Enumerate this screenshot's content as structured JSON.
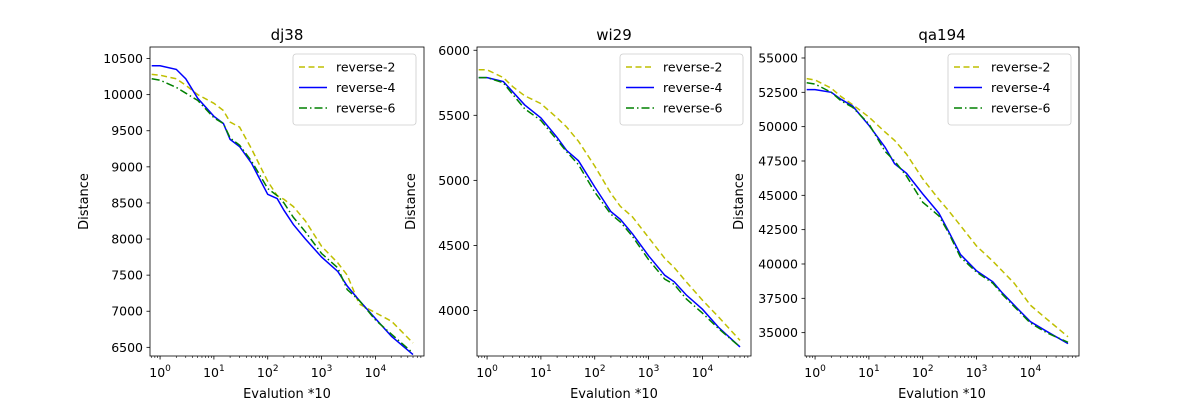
{
  "chart_data": [
    {
      "type": "line",
      "title": "dj38",
      "xlabel": "Evalution *10",
      "ylabel": "Distance",
      "xscale": "log",
      "xlim": [
        0.65,
        80000
      ],
      "ylim": [
        6380,
        10660
      ],
      "xticks": [
        {
          "value": 1,
          "base": "10",
          "exp": "0"
        },
        {
          "value": 10,
          "base": "10",
          "exp": "1"
        },
        {
          "value": 100,
          "base": "10",
          "exp": "2"
        },
        {
          "value": 1000,
          "base": "10",
          "exp": "3"
        },
        {
          "value": 10000,
          "base": "10",
          "exp": "4"
        }
      ],
      "yticks": [
        6500,
        7000,
        7500,
        8000,
        8500,
        9000,
        9500,
        10000,
        10500
      ],
      "legend": "top-right",
      "series": [
        {
          "name": "reverse-2",
          "color": "#bfbf00",
          "dash": "dashed",
          "x": [
            0.7,
            1,
            2,
            3,
            5,
            10,
            15,
            20,
            30,
            50,
            100,
            150,
            200,
            300,
            500,
            1000,
            2000,
            3000,
            5000,
            10000,
            20000,
            50000
          ],
          "y": [
            10280,
            10270,
            10220,
            10130,
            10000,
            9880,
            9780,
            9620,
            9550,
            9250,
            8800,
            8600,
            8550,
            8450,
            8250,
            7900,
            7670,
            7500,
            7100,
            6980,
            6860,
            6560
          ]
        },
        {
          "name": "reverse-4",
          "color": "#0000ff",
          "dash": "solid",
          "x": [
            0.7,
            1,
            2,
            3,
            5,
            10,
            15,
            20,
            30,
            50,
            100,
            150,
            200,
            300,
            500,
            1000,
            2000,
            3000,
            5000,
            10000,
            20000,
            50000
          ],
          "y": [
            10400,
            10400,
            10350,
            10220,
            9950,
            9700,
            9600,
            9380,
            9280,
            9050,
            8620,
            8560,
            8400,
            8200,
            8000,
            7750,
            7550,
            7350,
            7150,
            6900,
            6650,
            6400
          ]
        },
        {
          "name": "reverse-6",
          "color": "#008000",
          "dash": "dashdot",
          "x": [
            0.7,
            1,
            2,
            3,
            5,
            10,
            15,
            20,
            30,
            50,
            100,
            150,
            200,
            300,
            500,
            1000,
            2000,
            3000,
            5000,
            10000,
            20000,
            50000
          ],
          "y": [
            10220,
            10200,
            10100,
            10020,
            9920,
            9680,
            9600,
            9400,
            9300,
            9080,
            8700,
            8600,
            8500,
            8300,
            8100,
            7800,
            7600,
            7300,
            7150,
            6880,
            6680,
            6420
          ]
        }
      ]
    },
    {
      "type": "line",
      "title": "wi29",
      "xlabel": "Evalution *10",
      "ylabel": "Distance",
      "xscale": "log",
      "xlim": [
        0.65,
        80000
      ],
      "ylim": [
        3650,
        6025
      ],
      "xticks": [
        {
          "value": 1,
          "base": "10",
          "exp": "0"
        },
        {
          "value": 10,
          "base": "10",
          "exp": "1"
        },
        {
          "value": 100,
          "base": "10",
          "exp": "2"
        },
        {
          "value": 1000,
          "base": "10",
          "exp": "3"
        },
        {
          "value": 10000,
          "base": "10",
          "exp": "4"
        }
      ],
      "yticks": [
        4000,
        4500,
        5000,
        5500,
        6000
      ],
      "legend": "top-right",
      "series": [
        {
          "name": "reverse-2",
          "color": "#bfbf00",
          "dash": "dashed",
          "x": [
            0.7,
            1,
            2,
            3,
            5,
            10,
            20,
            30,
            50,
            100,
            200,
            300,
            500,
            1000,
            2000,
            3000,
            5000,
            10000,
            20000,
            50000
          ],
          "y": [
            5850,
            5850,
            5790,
            5720,
            5650,
            5590,
            5480,
            5410,
            5300,
            5110,
            4900,
            4800,
            4720,
            4560,
            4400,
            4330,
            4220,
            4080,
            3950,
            3770
          ]
        },
        {
          "name": "reverse-4",
          "color": "#0000ff",
          "dash": "solid",
          "x": [
            0.7,
            1,
            2,
            3,
            5,
            10,
            20,
            30,
            50,
            100,
            200,
            300,
            500,
            1000,
            2000,
            3000,
            5000,
            10000,
            20000,
            50000
          ],
          "y": [
            5790,
            5790,
            5760,
            5680,
            5580,
            5480,
            5330,
            5230,
            5150,
            4950,
            4760,
            4700,
            4590,
            4420,
            4270,
            4220,
            4120,
            4010,
            3870,
            3720
          ]
        },
        {
          "name": "reverse-6",
          "color": "#008000",
          "dash": "dashdot",
          "x": [
            0.7,
            1,
            2,
            3,
            5,
            10,
            20,
            30,
            50,
            100,
            200,
            300,
            500,
            1000,
            2000,
            3000,
            5000,
            10000,
            20000,
            50000
          ],
          "y": [
            5790,
            5790,
            5750,
            5660,
            5550,
            5460,
            5310,
            5220,
            5120,
            4910,
            4740,
            4680,
            4570,
            4390,
            4240,
            4200,
            4090,
            3980,
            3860,
            3720
          ]
        }
      ]
    },
    {
      "type": "line",
      "title": "qa194",
      "xlabel": "Evalution *10",
      "ylabel": "Distance",
      "xscale": "log",
      "xlim": [
        0.65,
        80000
      ],
      "ylim": [
        33300,
        55800
      ],
      "xticks": [
        {
          "value": 1,
          "base": "10",
          "exp": "0"
        },
        {
          "value": 10,
          "base": "10",
          "exp": "1"
        },
        {
          "value": 100,
          "base": "10",
          "exp": "2"
        },
        {
          "value": 1000,
          "base": "10",
          "exp": "3"
        },
        {
          "value": 10000,
          "base": "10",
          "exp": "4"
        }
      ],
      "yticks": [
        35000,
        37500,
        40000,
        42500,
        45000,
        47500,
        50000,
        52500,
        55000
      ],
      "legend": "top-right",
      "series": [
        {
          "name": "reverse-2",
          "color": "#bfbf00",
          "dash": "dashed",
          "x": [
            0.7,
            1,
            2,
            3,
            5,
            10,
            20,
            30,
            50,
            100,
            200,
            300,
            500,
            1000,
            2000,
            3000,
            5000,
            10000,
            20000,
            50000
          ],
          "y": [
            53500,
            53400,
            52800,
            52200,
            51600,
            50700,
            49600,
            49000,
            48000,
            46200,
            44700,
            43900,
            42800,
            41300,
            40200,
            39500,
            38600,
            37000,
            36000,
            34700
          ]
        },
        {
          "name": "reverse-4",
          "color": "#0000ff",
          "dash": "solid",
          "x": [
            0.7,
            1,
            2,
            3,
            5,
            10,
            20,
            30,
            50,
            100,
            200,
            300,
            500,
            1000,
            2000,
            3000,
            5000,
            10000,
            20000,
            50000
          ],
          "y": [
            52700,
            52700,
            52500,
            52000,
            51500,
            50100,
            48500,
            47300,
            46600,
            45100,
            43700,
            42400,
            40700,
            39500,
            38700,
            37900,
            37000,
            35800,
            35100,
            34200
          ]
        },
        {
          "name": "reverse-6",
          "color": "#008000",
          "dash": "dashdot",
          "x": [
            0.7,
            1,
            2,
            3,
            5,
            10,
            20,
            30,
            50,
            100,
            200,
            300,
            500,
            1000,
            2000,
            3000,
            5000,
            10000,
            20000,
            50000
          ],
          "y": [
            53200,
            53100,
            52500,
            51900,
            51400,
            50200,
            48200,
            47500,
            46400,
            44500,
            43500,
            42300,
            40500,
            39400,
            38600,
            37800,
            36900,
            35700,
            35000,
            34300
          ]
        }
      ]
    }
  ]
}
